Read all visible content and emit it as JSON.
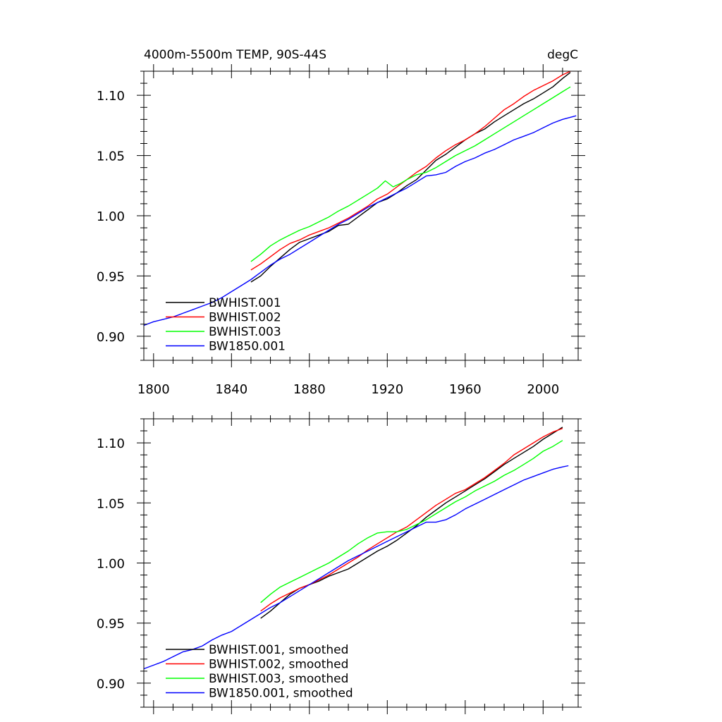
{
  "chart_data": [
    {
      "type": "line",
      "title": "4000m-5500m TEMP, 90S-44S",
      "units": "degC",
      "xlim": [
        1795,
        2018
      ],
      "ylim": [
        0.88,
        1.12
      ],
      "xticks": [
        1800,
        1840,
        1880,
        1920,
        1960,
        2000
      ],
      "yticks": [
        0.9,
        0.95,
        1.0,
        1.05,
        1.1
      ],
      "ytick_labels": [
        "0.90",
        "0.95",
        "1.00",
        "1.05",
        "1.10"
      ],
      "x_tick_labels_shown": true,
      "legend_position": "lower-left",
      "series": [
        {
          "name": "BWHIST.001",
          "color": "#000000",
          "x": [
            1850,
            1855,
            1860,
            1865,
            1870,
            1875,
            1880,
            1885,
            1890,
            1895,
            1900,
            1905,
            1910,
            1915,
            1920,
            1925,
            1930,
            1935,
            1940,
            1945,
            1950,
            1955,
            1960,
            1965,
            1970,
            1975,
            1980,
            1985,
            1990,
            1995,
            2000,
            2005,
            2010,
            2014
          ],
          "y": [
            0.945,
            0.95,
            0.958,
            0.965,
            0.972,
            0.978,
            0.981,
            0.984,
            0.987,
            0.992,
            0.993,
            0.999,
            1.005,
            1.011,
            1.014,
            1.019,
            1.025,
            1.03,
            1.038,
            1.046,
            1.051,
            1.057,
            1.063,
            1.068,
            1.072,
            1.078,
            1.083,
            1.088,
            1.093,
            1.097,
            1.102,
            1.107,
            1.114,
            1.119
          ]
        },
        {
          "name": "BWHIST.002",
          "color": "#ff0000",
          "x": [
            1850,
            1855,
            1860,
            1865,
            1870,
            1875,
            1880,
            1885,
            1890,
            1895,
            1900,
            1905,
            1910,
            1915,
            1920,
            1925,
            1930,
            1935,
            1940,
            1945,
            1950,
            1955,
            1960,
            1965,
            1970,
            1975,
            1980,
            1985,
            1990,
            1995,
            2000,
            2005,
            2010,
            2014
          ],
          "y": [
            0.955,
            0.96,
            0.966,
            0.972,
            0.977,
            0.98,
            0.984,
            0.987,
            0.99,
            0.994,
            0.998,
            1.003,
            1.008,
            1.014,
            1.018,
            1.024,
            1.03,
            1.036,
            1.041,
            1.048,
            1.054,
            1.059,
            1.063,
            1.068,
            1.074,
            1.081,
            1.088,
            1.093,
            1.099,
            1.104,
            1.108,
            1.112,
            1.117,
            1.12
          ]
        },
        {
          "name": "BWHIST.003",
          "color": "#00ff00",
          "x": [
            1850,
            1855,
            1860,
            1865,
            1870,
            1875,
            1880,
            1885,
            1890,
            1895,
            1900,
            1905,
            1910,
            1915,
            1919,
            1923,
            1927,
            1930,
            1935,
            1940,
            1945,
            1950,
            1955,
            1960,
            1965,
            1970,
            1975,
            1980,
            1985,
            1990,
            1995,
            2000,
            2005,
            2010,
            2014
          ],
          "y": [
            0.962,
            0.968,
            0.975,
            0.98,
            0.984,
            0.988,
            0.991,
            0.995,
            0.999,
            1.004,
            1.008,
            1.013,
            1.018,
            1.023,
            1.029,
            1.024,
            1.027,
            1.03,
            1.034,
            1.036,
            1.04,
            1.045,
            1.05,
            1.054,
            1.058,
            1.063,
            1.068,
            1.073,
            1.078,
            1.083,
            1.088,
            1.093,
            1.098,
            1.103,
            1.107
          ]
        },
        {
          "name": "BW1850.001",
          "color": "#0000ff",
          "x": [
            1795,
            1800,
            1805,
            1810,
            1815,
            1820,
            1825,
            1830,
            1835,
            1840,
            1845,
            1850,
            1855,
            1860,
            1865,
            1870,
            1875,
            1880,
            1885,
            1890,
            1895,
            1900,
            1905,
            1910,
            1915,
            1920,
            1925,
            1930,
            1935,
            1940,
            1945,
            1950,
            1955,
            1960,
            1965,
            1970,
            1975,
            1980,
            1985,
            1990,
            1995,
            2000,
            2005,
            2010,
            2017
          ],
          "y": [
            0.909,
            0.912,
            0.914,
            0.916,
            0.919,
            0.922,
            0.925,
            0.928,
            0.932,
            0.937,
            0.942,
            0.947,
            0.953,
            0.959,
            0.964,
            0.968,
            0.973,
            0.978,
            0.983,
            0.988,
            0.993,
            0.997,
            1.002,
            1.007,
            1.011,
            1.015,
            1.019,
            1.023,
            1.028,
            1.033,
            1.034,
            1.036,
            1.041,
            1.045,
            1.048,
            1.052,
            1.055,
            1.059,
            1.063,
            1.066,
            1.069,
            1.073,
            1.077,
            1.08,
            1.083
          ]
        }
      ]
    },
    {
      "type": "line",
      "xlim": [
        1795,
        2018
      ],
      "ylim": [
        0.88,
        1.12
      ],
      "xticks": [
        1800,
        1840,
        1880,
        1920,
        1960,
        2000
      ],
      "yticks": [
        0.9,
        0.95,
        1.0,
        1.05,
        1.1
      ],
      "ytick_labels": [
        "0.90",
        "0.95",
        "1.00",
        "1.05",
        "1.10"
      ],
      "x_tick_labels_shown": false,
      "legend_position": "lower-left",
      "series": [
        {
          "name": "BWHIST.001, smoothed",
          "color": "#000000",
          "x": [
            1855,
            1860,
            1865,
            1870,
            1875,
            1880,
            1885,
            1890,
            1895,
            1900,
            1905,
            1910,
            1915,
            1920,
            1925,
            1930,
            1935,
            1940,
            1945,
            1950,
            1955,
            1960,
            1965,
            1970,
            1975,
            1980,
            1985,
            1990,
            1995,
            2000,
            2005,
            2010
          ],
          "y": [
            0.954,
            0.96,
            0.967,
            0.974,
            0.979,
            0.982,
            0.985,
            0.989,
            0.992,
            0.995,
            1.0,
            1.005,
            1.01,
            1.014,
            1.019,
            1.025,
            1.031,
            1.038,
            1.044,
            1.05,
            1.055,
            1.06,
            1.065,
            1.07,
            1.076,
            1.082,
            1.087,
            1.092,
            1.097,
            1.103,
            1.108,
            1.113
          ]
        },
        {
          "name": "BWHIST.002, smoothed",
          "color": "#ff0000",
          "x": [
            1855,
            1860,
            1865,
            1870,
            1875,
            1880,
            1885,
            1890,
            1895,
            1900,
            1905,
            1910,
            1915,
            1920,
            1925,
            1930,
            1935,
            1940,
            1945,
            1950,
            1955,
            1960,
            1965,
            1970,
            1975,
            1980,
            1985,
            1990,
            1995,
            2000,
            2005,
            2010
          ],
          "y": [
            0.96,
            0.966,
            0.971,
            0.975,
            0.979,
            0.982,
            0.986,
            0.99,
            0.995,
            1.0,
            1.005,
            1.011,
            1.016,
            1.021,
            1.026,
            1.03,
            1.036,
            1.042,
            1.048,
            1.053,
            1.058,
            1.061,
            1.066,
            1.071,
            1.077,
            1.083,
            1.09,
            1.095,
            1.1,
            1.105,
            1.109,
            1.112
          ]
        },
        {
          "name": "BWHIST.003, smoothed",
          "color": "#00ff00",
          "x": [
            1855,
            1860,
            1865,
            1870,
            1875,
            1880,
            1885,
            1890,
            1895,
            1900,
            1905,
            1910,
            1915,
            1920,
            1925,
            1930,
            1935,
            1940,
            1945,
            1950,
            1955,
            1960,
            1965,
            1970,
            1975,
            1980,
            1985,
            1990,
            1995,
            2000,
            2005,
            2010
          ],
          "y": [
            0.967,
            0.974,
            0.98,
            0.984,
            0.988,
            0.992,
            0.996,
            1.0,
            1.005,
            1.01,
            1.016,
            1.021,
            1.025,
            1.026,
            1.026,
            1.028,
            1.032,
            1.036,
            1.041,
            1.046,
            1.051,
            1.055,
            1.06,
            1.064,
            1.068,
            1.073,
            1.077,
            1.082,
            1.087,
            1.093,
            1.097,
            1.102
          ]
        },
        {
          "name": "BW1850.001, smoothed",
          "color": "#0000ff",
          "x": [
            1795,
            1800,
            1805,
            1810,
            1815,
            1820,
            1825,
            1830,
            1835,
            1840,
            1845,
            1850,
            1855,
            1860,
            1865,
            1870,
            1875,
            1880,
            1885,
            1890,
            1895,
            1900,
            1905,
            1910,
            1915,
            1920,
            1925,
            1930,
            1935,
            1940,
            1945,
            1950,
            1955,
            1960,
            1965,
            1970,
            1975,
            1980,
            1985,
            1990,
            1995,
            2000,
            2005,
            2010,
            2013
          ],
          "y": [
            0.912,
            0.915,
            0.918,
            0.922,
            0.926,
            0.928,
            0.931,
            0.936,
            0.94,
            0.943,
            0.948,
            0.953,
            0.958,
            0.963,
            0.967,
            0.972,
            0.977,
            0.982,
            0.987,
            0.992,
            0.997,
            1.002,
            1.006,
            1.01,
            1.014,
            1.018,
            1.022,
            1.026,
            1.03,
            1.034,
            1.034,
            1.036,
            1.04,
            1.045,
            1.049,
            1.053,
            1.057,
            1.061,
            1.065,
            1.069,
            1.072,
            1.075,
            1.078,
            1.08,
            1.081
          ]
        }
      ]
    }
  ]
}
